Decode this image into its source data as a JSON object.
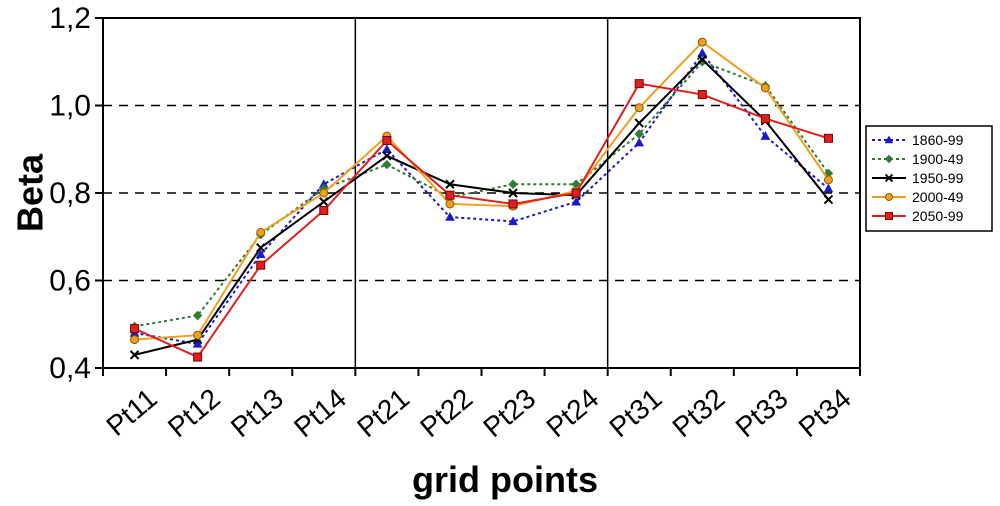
{
  "chart_data": {
    "type": "line",
    "title": "",
    "xlabel": "grid points",
    "ylabel": "Beta",
    "ylim": [
      0.4,
      1.2
    ],
    "yticks": [
      0.4,
      0.6,
      0.8,
      1.0,
      1.2
    ],
    "ytick_labels": [
      "0,4",
      "0,6",
      "0,8",
      "1,0",
      "1,2"
    ],
    "gridlines": "dashed horizontal at 0,6 0,8 1,0",
    "group_separators": "vertical lines between Pt14/Pt21 and Pt24/Pt31",
    "legend_position": "right",
    "categories": [
      "Pt11",
      "Pt12",
      "Pt13",
      "Pt14",
      "Pt21",
      "Pt22",
      "Pt23",
      "Pt24",
      "Pt31",
      "Pt32",
      "Pt33",
      "Pt34"
    ],
    "series": [
      {
        "name": "1860-99",
        "color": "#1a1acc",
        "dash": "dotted",
        "marker": "triangle",
        "values": [
          0.48,
          0.455,
          0.66,
          0.82,
          0.9,
          0.745,
          0.735,
          0.78,
          0.915,
          1.12,
          0.93,
          0.81
        ]
      },
      {
        "name": "1900-49",
        "color": "#2e7d32",
        "dash": "dotted",
        "marker": "diamond",
        "values": [
          0.495,
          0.52,
          0.705,
          0.81,
          0.865,
          0.79,
          0.82,
          0.82,
          0.935,
          1.1,
          1.045,
          0.845
        ]
      },
      {
        "name": "1950-99",
        "color": "#000000",
        "dash": "solid",
        "marker": "x",
        "values": [
          0.43,
          0.465,
          0.675,
          0.78,
          0.885,
          0.82,
          0.8,
          0.795,
          0.96,
          1.105,
          0.965,
          0.785
        ]
      },
      {
        "name": "2000-49",
        "color": "#f0a020",
        "dash": "solid",
        "marker": "circle",
        "values": [
          0.465,
          0.475,
          0.71,
          0.8,
          0.93,
          0.775,
          0.77,
          0.805,
          0.995,
          1.145,
          1.04,
          0.83
        ]
      },
      {
        "name": "2050-99",
        "color": "#e02020",
        "dash": "solid",
        "marker": "square",
        "values": [
          0.49,
          0.425,
          0.635,
          0.76,
          0.92,
          0.795,
          0.775,
          0.8,
          1.05,
          1.025,
          0.97,
          0.925
        ]
      }
    ]
  }
}
